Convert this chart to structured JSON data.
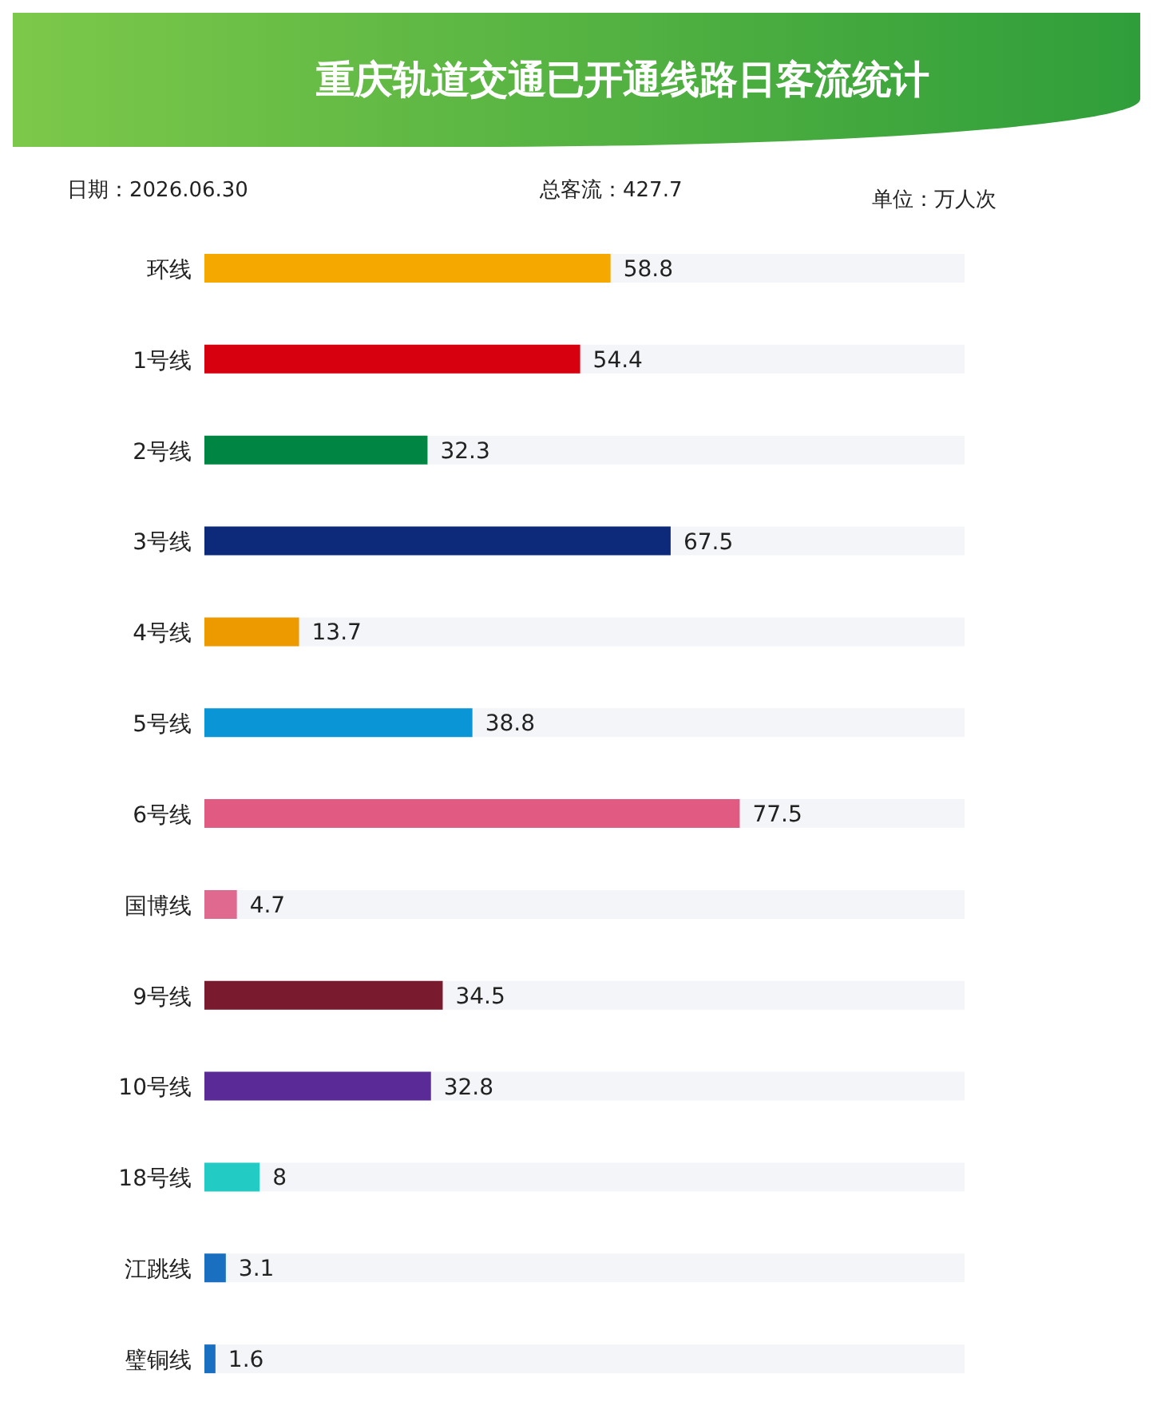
{
  "chart_data": {
    "type": "bar",
    "orientation": "horizontal",
    "title": "重庆轨道交通已开通线路日客流统计",
    "annotations": [
      "日期：2026.06.30",
      "总客流：427.7",
      "单位：万人次"
    ],
    "categories": [
      "环线",
      "1号线",
      "2号线",
      "3号线",
      "4号线",
      "5号线",
      "6号线",
      "国博线",
      "9号线",
      "10号线",
      "18号线",
      "江跳线",
      "璧铜线"
    ],
    "values": [
      58.8,
      54.4,
      32.3,
      67.5,
      13.7,
      38.8,
      77.5,
      4.7,
      34.5,
      32.8,
      8,
      3.1,
      1.6
    ],
    "colors": [
      "#f5a800",
      "#d7000f",
      "#008542",
      "#0d2a7a",
      "#ed9a00",
      "#0a95d6",
      "#e05a82",
      "#e06a8f",
      "#7a1a2e",
      "#5a2a96",
      "#22cbc4",
      "#1a6fc0",
      "#1a6fc0"
    ],
    "tick_labels": "y",
    "data_labels": true,
    "grid": false,
    "legend": false
  }
}
